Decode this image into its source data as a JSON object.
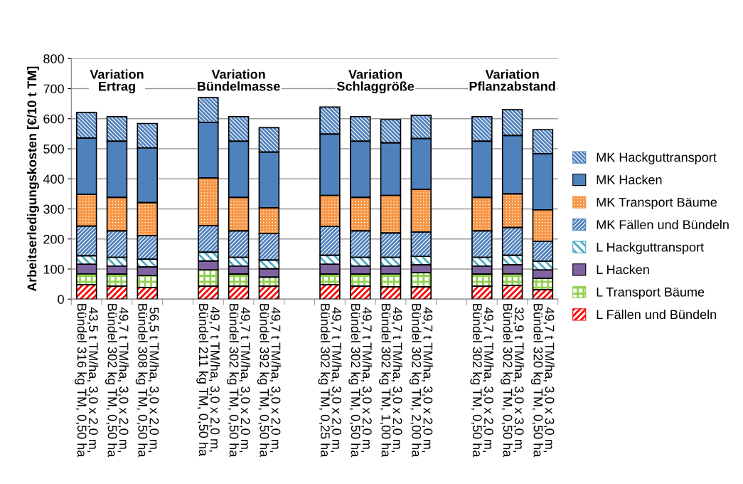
{
  "chart_data": {
    "type": "bar",
    "stacked": true,
    "ylabel": "Arbeitserledigungskosten [€/10 t TM]",
    "categories": [
      "43,5 t TM/ha, 3,0 x 2,0 m,\nBündel 316 kg TM, 0,50 ha",
      "49,7 t TM/ha, 3,0 x 2,0 m,\nBündel 302 kg TM, 0,50 ha",
      "56,5 t TM/ha, 3,0 x 2,0 m,\nBündel 308 kg TM, 0,50 ha",
      null,
      "49,7 t TM/ha, 3,0 x 2,0 m,\nBündel 211 kg TM, 0,50 ha",
      "49,7 t TM/ha, 3,0 x 2,0 m,\nBündel 302 kg TM, 0,50 ha",
      "49,7 t TM/ha, 3,0 x 2,0 m,\nBündel 392 kg TM, 0,50 ha",
      null,
      "49,7 t TM/ha, 3,0 x 2,0 m,\nBündel 302 kg TM, 0,25 ha",
      "49,7 t TM/ha, 3,0 x 2,0 m,\nBündel 302 kg TM, 0,50 ha",
      "49,7 t TM/ha, 3,0 x 2,0 m,\nBündel 302 kg TM, 1,00 ha",
      "49,7 t TM/ha, 3,0 x 2,0 m,\nBündel 302 kg TM, 2,00 ha",
      null,
      "49,7 t TM/ha, 3,0 x 2,0 m,\nBündel 302 kg TM, 0,50 ha",
      "32,9 t TM/ha, 3,0 x 3,0 m,\nBündel 302 kg TM, 0,50 ha",
      "49,7 t TM/ha, 3,0 x 3,0 m,\nBündel 320 kg TM, 0,50 ha"
    ],
    "series": [
      {
        "name": "L Fällen und Bündeln",
        "color": "#ff0000",
        "values": [
          48,
          43,
          38,
          null,
          43,
          43,
          43,
          null,
          48,
          43,
          41,
          41,
          null,
          43,
          46,
          31
        ]
      },
      {
        "name": "L Transport Bäume",
        "color": "#92d050",
        "values": [
          36,
          40,
          40,
          null,
          54,
          40,
          30,
          null,
          35,
          40,
          43,
          47,
          null,
          40,
          38,
          38
        ]
      },
      {
        "name": "L Hacken",
        "color": "#8064a2",
        "values": [
          32,
          27,
          29,
          null,
          30,
          27,
          28,
          null,
          33,
          27,
          26,
          26,
          null,
          27,
          30,
          28
        ]
      },
      {
        "name": "L Hackguttransport",
        "color": "#4bacc6",
        "values": [
          28,
          29,
          26,
          null,
          29,
          29,
          29,
          null,
          30,
          29,
          29,
          28,
          null,
          29,
          32,
          29
        ]
      },
      {
        "name": "MK Fällen und Bündeln",
        "color": "#4f81bd",
        "values": [
          99,
          88,
          78,
          null,
          88,
          88,
          88,
          null,
          96,
          88,
          81,
          81,
          null,
          88,
          92,
          66
        ]
      },
      {
        "name": "MK Transport Bäume",
        "color": "#f79646",
        "values": [
          106,
          111,
          110,
          null,
          159,
          111,
          86,
          null,
          103,
          111,
          125,
          142,
          null,
          111,
          112,
          105
        ]
      },
      {
        "name": "MK Hacken",
        "color": "#4f81bd",
        "values": [
          187,
          187,
          182,
          null,
          185,
          187,
          185,
          null,
          204,
          187,
          175,
          169,
          null,
          187,
          194,
          186
        ]
      },
      {
        "name": "MK Hackguttransport",
        "color": "#4f81bd",
        "values": [
          85,
          82,
          81,
          null,
          82,
          82,
          81,
          null,
          90,
          82,
          77,
          77,
          null,
          82,
          86,
          81
        ]
      }
    ],
    "ylim": [
      0,
      800
    ],
    "yticks": [
      0,
      100,
      200,
      300,
      400,
      500,
      600,
      700,
      800
    ],
    "grid": "y",
    "legend": "right",
    "annotations": [
      "Variation\nErtrag",
      "Variation\nBündelmasse",
      "Variation\nSchlaggröße",
      "Variation\nPflanzabstand"
    ]
  }
}
